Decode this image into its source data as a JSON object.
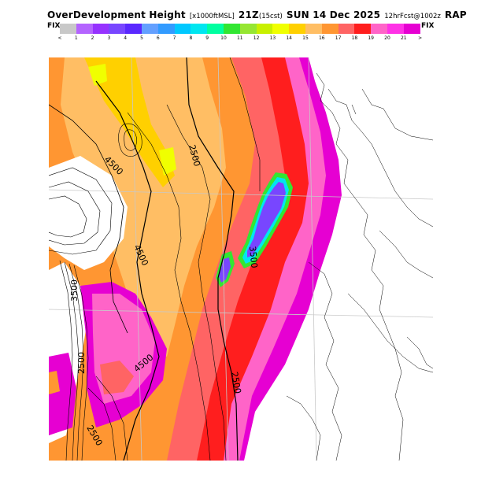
{
  "header": {
    "title_main": "OverDevelopment Height",
    "title_units": "[x1000ftMSL]",
    "title_time": "21Z",
    "title_tz": "(15cst)",
    "title_date": "SUN  14 Dec 2025",
    "model_run": "12hrFcst@1002z",
    "model": "RAP"
  },
  "legend": {
    "left_label": "FIX",
    "right_label": "FIX",
    "tick_labels": [
      "<",
      "1",
      "2",
      "3",
      "4",
      "5",
      "6",
      "7",
      "8",
      "9",
      "10",
      "11",
      "12",
      "13",
      "14",
      "15",
      "16",
      "17",
      "18",
      "19",
      "20",
      "21",
      ">"
    ],
    "colors": [
      "#c8c8c8",
      "#b464ff",
      "#9632ff",
      "#7846ff",
      "#5a28ff",
      "#64a0ff",
      "#329bff",
      "#00c8ff",
      "#00e6f0",
      "#00ffa0",
      "#32e632",
      "#96e632",
      "#c8f000",
      "#f0ff00",
      "#ffd000",
      "#ffbe64",
      "#ff9632",
      "#ff6464",
      "#ff1e1e",
      "#ff64c8",
      "#ff32e6",
      "#e600d2"
    ]
  },
  "map": {
    "contour_labels": [
      "2500",
      "4500",
      "4500",
      "3500",
      "2500",
      "2500",
      "3500",
      "4500",
      "2500"
    ]
  }
}
